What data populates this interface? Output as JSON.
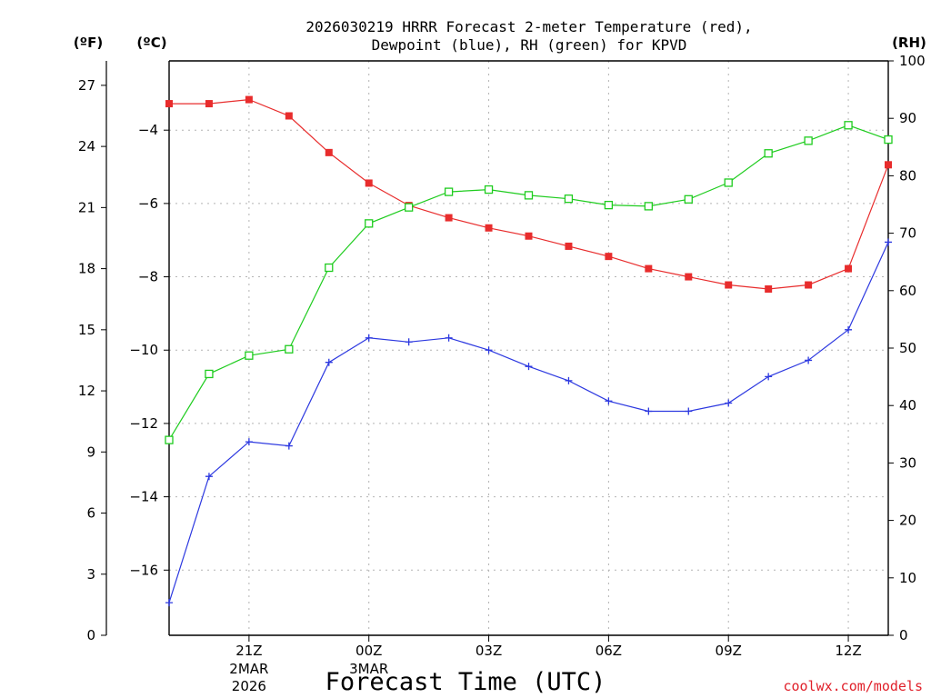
{
  "chart_data": {
    "type": "line",
    "title": "2026030219 HRRR Forecast 2-meter Temperature (red),",
    "subtitle": "Dewpoint (blue), RH (green) for KPVD",
    "xlabel": "Forecast Time (UTC)",
    "credit": "coolwx.com/models",
    "left_axis_label_f": "(ºF)",
    "left_axis_label_c": "(ºC)",
    "right_axis_label": "(RH)",
    "x": [
      19,
      20,
      21,
      22,
      23,
      24,
      25,
      26,
      27,
      28,
      29,
      30,
      31,
      32,
      33,
      34,
      35,
      36,
      37
    ],
    "xlim": [
      19,
      37
    ],
    "x_ticks": [
      {
        "x": 21,
        "label": "21Z",
        "sub1": "2MAR",
        "sub2": "2026"
      },
      {
        "x": 24,
        "label": "00Z",
        "sub1": "3MAR",
        "sub2": ""
      },
      {
        "x": 27,
        "label": "03Z",
        "sub1": "",
        "sub2": ""
      },
      {
        "x": 30,
        "label": "06Z",
        "sub1": "",
        "sub2": ""
      },
      {
        "x": 33,
        "label": "09Z",
        "sub1": "",
        "sub2": ""
      },
      {
        "x": 36,
        "label": "12Z",
        "sub1": "",
        "sub2": ""
      }
    ],
    "ylim_f": [
      0,
      28.2
    ],
    "yticks_f": [
      0,
      3,
      6,
      9,
      12,
      15,
      18,
      21,
      24,
      27
    ],
    "yticks_c": [
      -16,
      -14,
      -12,
      -10,
      -8,
      -6,
      -4
    ],
    "ylim_rh": [
      0,
      100
    ],
    "yticks_rh": [
      0,
      10,
      20,
      30,
      40,
      50,
      60,
      70,
      80,
      90,
      100
    ],
    "grid": true,
    "series": [
      {
        "name": "Temperature",
        "color": "#e82c2c",
        "axis": "f",
        "marker": "filled-square",
        "values": [
          26.1,
          26.1,
          26.3,
          25.5,
          23.7,
          22.2,
          21.1,
          20.5,
          20.0,
          19.6,
          19.1,
          18.6,
          18.0,
          17.6,
          17.2,
          17.0,
          17.2,
          18.0,
          23.1
        ]
      },
      {
        "name": "Dewpoint",
        "color": "#2c38e0",
        "axis": "f",
        "marker": "plus",
        "values": [
          1.6,
          7.8,
          9.5,
          9.3,
          13.4,
          14.6,
          14.4,
          14.6,
          14.0,
          13.2,
          12.5,
          11.5,
          11.0,
          11.0,
          11.4,
          12.7,
          13.5,
          15.0,
          19.3
        ]
      },
      {
        "name": "RH",
        "color": "#1ecc1e",
        "axis": "rh",
        "marker": "open-square",
        "values": [
          34.0,
          45.5,
          48.7,
          49.8,
          64.0,
          71.7,
          74.5,
          77.2,
          77.6,
          76.6,
          76.0,
          74.9,
          74.7,
          75.9,
          78.8,
          83.9,
          86.1,
          88.8,
          86.3
        ]
      }
    ]
  }
}
